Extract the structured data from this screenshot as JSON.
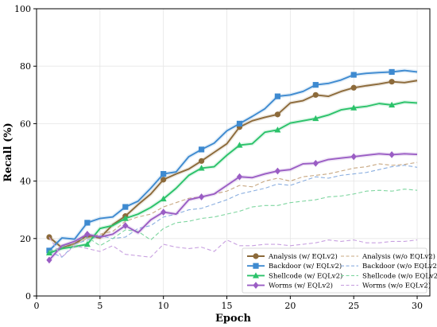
{
  "chart_data": {
    "type": "line",
    "xlabel": "Epoch",
    "ylabel": "Recall (%)",
    "xlim": [
      0,
      31
    ],
    "ylim": [
      0,
      100
    ],
    "xticks": [
      "0",
      "5",
      "10",
      "15",
      "20",
      "25",
      "30"
    ],
    "yticks": [
      "0",
      "20",
      "40",
      "60",
      "80",
      "100"
    ],
    "grid": true,
    "legend_position": "bottom-right",
    "x": [
      1,
      2,
      3,
      4,
      5,
      6,
      7,
      8,
      9,
      10,
      11,
      12,
      13,
      14,
      15,
      16,
      17,
      18,
      19,
      20,
      21,
      22,
      23,
      24,
      25,
      26,
      27,
      28,
      29,
      30
    ],
    "series": [
      {
        "name": "Analysis (w/ EQLv2)",
        "color": "#8c6a3a",
        "style": "solid",
        "marker": "circle",
        "marker_color": "#8c6a3a",
        "values": [
          20.5,
          16.8,
          18.2,
          21.0,
          20.2,
          24.8,
          27.8,
          31.8,
          35.5,
          40.5,
          42.5,
          44.2,
          47.0,
          50.0,
          53.0,
          58.8,
          61.0,
          62.2,
          63.2,
          67.2,
          68.0,
          70.0,
          69.5,
          71.2,
          72.5,
          73.2,
          73.8,
          74.6,
          74.3,
          75.0
        ]
      },
      {
        "name": "Analysis (w/o EQLv2)",
        "color": "#c8a882",
        "style": "dashed",
        "values": [
          20.0,
          16.5,
          18.0,
          20.0,
          21.5,
          22.5,
          26.0,
          27.5,
          28.5,
          31.0,
          32.5,
          34.0,
          34.5,
          35.5,
          36.5,
          38.5,
          38.0,
          40.0,
          41.0,
          40.0,
          41.5,
          42.0,
          42.5,
          43.5,
          44.5,
          45.0,
          46.0,
          45.5,
          45.8,
          46.5
        ]
      },
      {
        "name": "Backdoor (w/ EQLv2)",
        "color": "#3e8ad0",
        "style": "solid",
        "marker": "square",
        "marker_color": "#3e8ad0",
        "values": [
          15.8,
          20.2,
          19.8,
          25.5,
          27.0,
          27.5,
          31.0,
          33.0,
          37.5,
          42.5,
          43.2,
          48.5,
          51.0,
          53.2,
          57.5,
          60.0,
          62.5,
          65.2,
          69.5,
          70.0,
          71.2,
          73.5,
          74.0,
          75.2,
          77.0,
          77.5,
          77.8,
          78.0,
          78.5,
          78.0
        ]
      },
      {
        "name": "Backdoor (w/o EQLv2)",
        "color": "#8aaee0",
        "style": "dashed",
        "values": [
          15.5,
          13.5,
          18.0,
          19.5,
          21.0,
          20.0,
          20.5,
          23.5,
          24.5,
          27.5,
          28.5,
          30.0,
          30.5,
          32.0,
          33.5,
          35.5,
          36.5,
          37.5,
          39.0,
          38.5,
          40.0,
          41.5,
          41.0,
          42.0,
          42.5,
          43.0,
          44.0,
          45.0,
          45.5,
          44.8
        ]
      },
      {
        "name": "Shellcode (w/ EQLv2)",
        "color": "#2bc26a",
        "style": "solid",
        "marker": "triangle",
        "marker_color": "#2bc26a",
        "values": [
          15.0,
          16.5,
          17.2,
          18.0,
          23.5,
          24.5,
          27.0,
          28.5,
          30.8,
          33.8,
          37.5,
          42.0,
          44.5,
          45.0,
          49.0,
          52.5,
          53.0,
          57.0,
          57.8,
          60.2,
          61.0,
          61.8,
          63.0,
          64.8,
          65.5,
          66.0,
          67.0,
          66.5,
          67.5,
          67.2
        ]
      },
      {
        "name": "Shellcode (w/o EQLv2)",
        "color": "#7fd6a0",
        "style": "dashed",
        "values": [
          15.5,
          17.0,
          19.0,
          20.5,
          17.5,
          20.0,
          23.0,
          22.5,
          19.5,
          23.5,
          25.5,
          26.0,
          27.0,
          27.5,
          28.5,
          29.5,
          31.0,
          31.5,
          31.5,
          32.5,
          33.0,
          33.5,
          34.5,
          34.8,
          35.5,
          36.5,
          36.8,
          36.5,
          37.2,
          36.8
        ]
      },
      {
        "name": "Worms (w/ EQLv2)",
        "color": "#9a5dc4",
        "style": "solid",
        "marker": "diamond",
        "marker_color": "#9a5dc4",
        "values": [
          12.5,
          17.5,
          19.0,
          21.5,
          20.5,
          21.5,
          24.5,
          22.0,
          26.5,
          29.2,
          28.5,
          33.5,
          34.5,
          35.5,
          38.5,
          41.5,
          41.2,
          42.5,
          43.5,
          44.0,
          46.0,
          46.2,
          47.5,
          48.0,
          48.5,
          49.0,
          49.5,
          49.2,
          49.5,
          49.3
        ]
      },
      {
        "name": "Worms (w/o EQLv2)",
        "color": "#c8a0e0",
        "style": "dashed",
        "values": [
          20.5,
          13.5,
          17.5,
          16.5,
          15.5,
          17.5,
          14.5,
          14.0,
          13.5,
          18.0,
          17.0,
          16.5,
          17.0,
          15.5,
          19.5,
          17.5,
          17.5,
          18.0,
          18.0,
          17.5,
          18.0,
          18.5,
          19.5,
          19.0,
          19.5,
          18.5,
          18.5,
          19.0,
          19.0,
          19.5
        ]
      }
    ]
  }
}
